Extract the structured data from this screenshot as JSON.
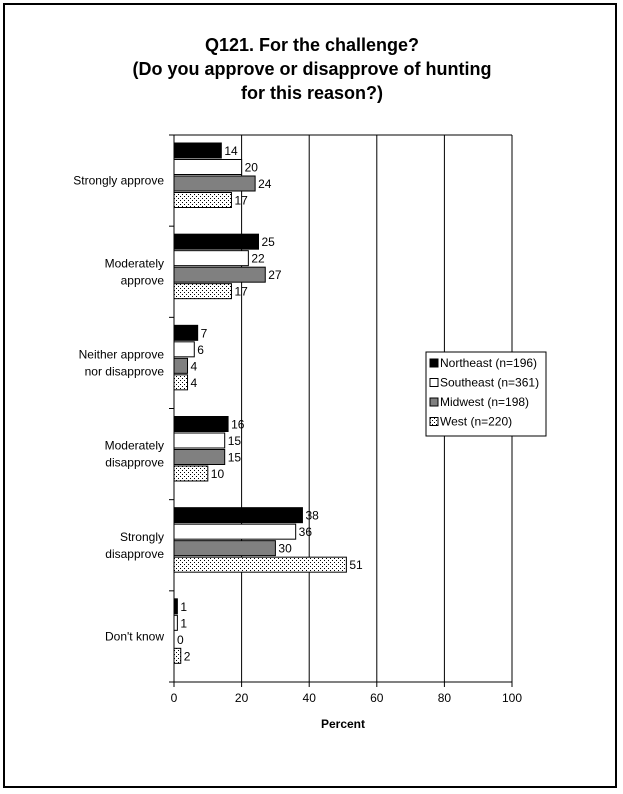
{
  "chart_data": {
    "type": "bar",
    "orientation": "horizontal",
    "title_lines": [
      "Q121. For the challenge?",
      "(Do you approve or disapprove of hunting",
      "for this reason?)"
    ],
    "xlabel": "Percent",
    "xlim": [
      0,
      100
    ],
    "xticks": [
      0,
      20,
      40,
      60,
      80,
      100
    ],
    "grid": "vertical",
    "legend_position": "right",
    "categories": [
      [
        "Strongly approve"
      ],
      [
        "Moderately",
        "approve"
      ],
      [
        "Neither approve",
        "nor disapprove"
      ],
      [
        "Moderately",
        "disapprove"
      ],
      [
        "Strongly",
        "disapprove"
      ],
      [
        "Don't know"
      ]
    ],
    "series": [
      {
        "name": "Northeast (n=196)",
        "pattern": "solid-black",
        "values": [
          14,
          25,
          7,
          16,
          38,
          1
        ]
      },
      {
        "name": "Southeast (n=361)",
        "pattern": "white",
        "values": [
          20,
          22,
          6,
          15,
          36,
          1
        ]
      },
      {
        "name": "Midwest (n=198)",
        "pattern": "gray",
        "values": [
          24,
          27,
          4,
          15,
          30,
          0
        ]
      },
      {
        "name": "West (n=220)",
        "pattern": "dotted",
        "values": [
          17,
          17,
          4,
          10,
          51,
          2
        ]
      }
    ]
  }
}
